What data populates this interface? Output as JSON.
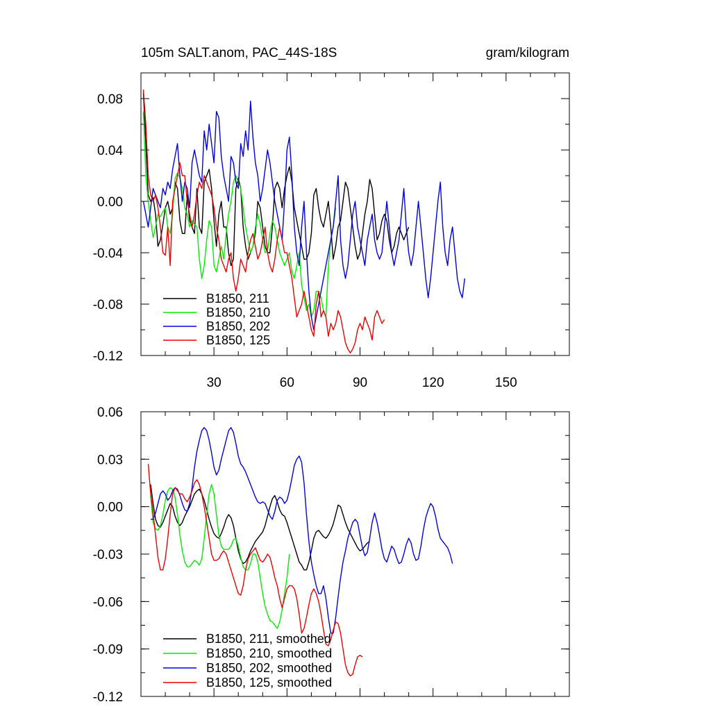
{
  "chart_data": [
    {
      "type": "line",
      "title_left": "105m SALT.anom, PAC_44S-18S",
      "title_right": "gram/kilogram",
      "xlim": [
        0,
        176
      ],
      "ylim": [
        -0.12,
        0.1
      ],
      "x_ticks": [
        30,
        60,
        90,
        120,
        150
      ],
      "x_tick_labels": [
        "30",
        "60",
        "90",
        "120",
        "150"
      ],
      "y_ticks": [
        0.08,
        0.04,
        0.0,
        -0.04,
        -0.08,
        -0.12
      ],
      "y_tick_labels": [
        "0.08",
        "0.04",
        "0.00",
        "-0.04",
        "-0.08",
        "-0.12"
      ],
      "legend_position": "bottom-left",
      "series": [
        {
          "name": "B1850, 211",
          "color": "#000000",
          "x_start": 1,
          "x_step": 1,
          "values": [
            0.085,
            0.045,
            0.005,
            0.0,
            0.003,
            -0.01,
            -0.035,
            -0.03,
            -0.018,
            -0.005,
            0.0,
            -0.01,
            -0.005,
            0.015,
            0.01,
            -0.015,
            -0.025,
            -0.025,
            0.005,
            -0.015,
            -0.02,
            -0.025,
            0.01,
            -0.02,
            -0.025,
            0.015,
            0.02,
            0.025,
            0.01,
            -0.015,
            -0.035,
            -0.01,
            0.0,
            -0.02,
            -0.02,
            -0.04,
            -0.05,
            -0.045,
            0.01,
            0.018,
            0.01,
            -0.02,
            -0.035,
            -0.045,
            -0.04,
            -0.035,
            -0.025,
            0.0,
            -0.005,
            -0.02,
            -0.035,
            -0.04,
            -0.04,
            -0.02,
            0.01,
            0.015,
            0.01,
            -0.005,
            0.01,
            0.02,
            0.027,
            0.015,
            -0.005,
            -0.015,
            -0.025,
            -0.035,
            -0.045,
            -0.045,
            -0.04,
            -0.025,
            0.005,
            0.01,
            -0.005,
            -0.015,
            -0.02,
            -0.01,
            0.0,
            -0.02,
            -0.045,
            -0.035,
            -0.02,
            -0.015,
            0.0,
            0.015,
            0.01,
            -0.005,
            -0.02,
            -0.035,
            -0.045,
            -0.04,
            -0.025,
            -0.01,
            0.0,
            0.017,
            0.01,
            -0.01,
            -0.03,
            -0.025,
            -0.015,
            -0.01,
            -0.015,
            -0.03,
            -0.04,
            -0.035,
            -0.025,
            -0.02,
            -0.025,
            -0.03,
            -0.025,
            -0.02
          ]
        },
        {
          "name": "B1850, 210",
          "color": "#00ee00",
          "x_start": 1,
          "x_step": 1,
          "values": [
            0.07,
            0.02,
            0.0,
            -0.015,
            -0.028,
            -0.02,
            -0.01,
            -0.012,
            -0.008,
            -0.005,
            -0.02,
            -0.025,
            -0.01,
            0.018,
            0.022,
            0.018,
            0.01,
            -0.005,
            -0.01,
            -0.02,
            -0.015,
            -0.018,
            -0.02,
            -0.045,
            -0.06,
            -0.05,
            -0.03,
            -0.015,
            -0.02,
            -0.05,
            -0.055,
            -0.045,
            -0.035,
            -0.045,
            -0.025,
            -0.01,
            0.0,
            0.015,
            0.02,
            0.015,
            0.01,
            -0.005,
            -0.02,
            -0.03,
            -0.04,
            -0.035,
            -0.02,
            -0.01,
            -0.018,
            -0.03,
            -0.04,
            -0.038,
            -0.025,
            -0.015,
            -0.02,
            -0.03,
            -0.04,
            -0.045,
            -0.05,
            -0.045,
            -0.04,
            -0.055,
            -0.06,
            -0.05,
            -0.04,
            -0.065,
            -0.075,
            -0.085,
            -0.08,
            -0.09,
            -0.085,
            -0.07,
            -0.07,
            -0.075,
            -0.085,
            -0.09,
            -0.05,
            -0.03,
            -0.02,
            -0.005
          ]
        },
        {
          "name": "B1850, 202",
          "color": "#0000dd",
          "x_start": 1,
          "x_step": 1,
          "values": [
            0.0,
            -0.01,
            -0.02,
            -0.005,
            0.01,
            0.005,
            0.0,
            -0.005,
            0.01,
            0.005,
            0.015,
            0.01,
            0.025,
            0.035,
            0.045,
            0.02,
            0.0,
            0.015,
            0.01,
            -0.005,
            0.03,
            0.04,
            0.03,
            0.02,
            0.015,
            0.055,
            0.04,
            0.06,
            0.045,
            0.03,
            0.07,
            0.065,
            0.035,
            0.02,
            0.01,
            0.0,
            0.035,
            0.03,
            0.015,
            0.01,
            0.045,
            0.035,
            0.055,
            0.04,
            0.078,
            0.05,
            0.03,
            0.02,
            0.0,
            0.01,
            0.025,
            0.04,
            0.03,
            0.015,
            0.0,
            -0.01,
            -0.02,
            -0.03,
            0.0,
            0.04,
            0.05,
            0.02,
            -0.02,
            -0.04,
            -0.05,
            -0.02,
            0.0,
            -0.04,
            -0.07,
            -0.09,
            -0.1,
            -0.09,
            -0.08,
            -0.07,
            -0.06,
            -0.05,
            -0.04,
            -0.03,
            -0.02,
            0.0,
            0.02,
            -0.03,
            -0.05,
            -0.06,
            -0.05,
            -0.03,
            -0.01,
            0.0,
            -0.02,
            -0.03,
            -0.04,
            -0.05,
            -0.03,
            -0.02,
            -0.01,
            -0.03,
            -0.04,
            -0.045,
            -0.04,
            -0.02,
            0.0,
            -0.02,
            -0.04,
            -0.05,
            -0.04,
            -0.03,
            -0.01,
            0.01,
            -0.02,
            -0.04,
            -0.05,
            -0.04,
            -0.02,
            0.0,
            -0.02,
            -0.04,
            -0.06,
            -0.075,
            -0.06,
            -0.04,
            -0.02,
            0.0,
            0.015,
            -0.02,
            -0.04,
            -0.05,
            -0.03,
            -0.02,
            -0.04,
            -0.06,
            -0.07,
            -0.075,
            -0.06
          ]
        },
        {
          "name": "B1850, 125",
          "color": "#ee0000",
          "x_start": 1,
          "x_step": 1,
          "values": [
            0.087,
            0.06,
            0.02,
            0.005,
            0.0,
            0.005,
            -0.005,
            -0.02,
            -0.04,
            -0.042,
            -0.02,
            -0.05,
            0.0,
            0.01,
            0.02,
            0.03,
            0.02,
            0.02,
            0.0,
            -0.01,
            -0.02,
            -0.01,
            0.005,
            0.015,
            0.01,
            0.02,
            0.015,
            0.01,
            0.005,
            -0.005,
            -0.02,
            -0.03,
            -0.045,
            -0.05,
            -0.055,
            -0.045,
            -0.04,
            -0.06,
            -0.07,
            -0.06,
            -0.045,
            -0.05,
            -0.055,
            -0.04,
            -0.03,
            -0.025,
            -0.035,
            -0.045,
            -0.04,
            -0.03,
            -0.02,
            -0.04,
            -0.05,
            -0.055,
            -0.045,
            -0.03,
            -0.02,
            -0.03,
            -0.04,
            -0.04,
            -0.05,
            -0.06,
            -0.075,
            -0.09,
            -0.085,
            -0.08,
            -0.07,
            -0.08,
            -0.09,
            -0.1,
            -0.105,
            -0.08,
            -0.07,
            -0.09,
            -0.085,
            -0.09,
            -0.105,
            -0.095,
            -0.1,
            -0.095,
            -0.085,
            -0.09,
            -0.1,
            -0.11,
            -0.115,
            -0.118,
            -0.115,
            -0.11,
            -0.1,
            -0.095,
            -0.1,
            -0.09,
            -0.095,
            -0.1,
            -0.108,
            -0.09,
            -0.085,
            -0.09,
            -0.095,
            -0.092
          ]
        }
      ]
    },
    {
      "type": "line",
      "xlim": [
        0,
        176
      ],
      "ylim": [
        -0.12,
        0.06
      ],
      "x_ticks": [
        30,
        60,
        90,
        120,
        150
      ],
      "y_ticks": [
        0.06,
        0.03,
        0.0,
        -0.03,
        -0.06,
        -0.09,
        -0.12
      ],
      "y_tick_labels": [
        "0.06",
        "0.03",
        "0.00",
        "-0.03",
        "-0.06",
        "-0.09",
        "-0.12"
      ],
      "legend_position": "bottom-left",
      "series": [
        {
          "name": "B1850, 211, smoothed",
          "color": "#000000",
          "x_start": 4,
          "x_step": 1,
          "values": [
            0.014,
            0.002,
            -0.008,
            -0.012,
            -0.013,
            -0.01,
            -0.006,
            -0.002,
            0.002,
            0.0,
            -0.006,
            -0.01,
            -0.012,
            -0.01,
            -0.006,
            -0.003,
            0.0,
            0.004,
            0.008,
            0.01,
            0.011,
            0.008,
            0.004,
            -0.002,
            -0.008,
            -0.013,
            -0.017,
            -0.019,
            -0.02,
            -0.017,
            -0.013,
            -0.008,
            -0.005,
            -0.007,
            -0.012,
            -0.02,
            -0.028,
            -0.033,
            -0.036,
            -0.035,
            -0.032,
            -0.028,
            -0.025,
            -0.022,
            -0.02,
            -0.018,
            -0.016,
            -0.012,
            -0.006,
            0.0,
            0.005,
            0.007,
            0.003,
            -0.002,
            -0.005,
            -0.006,
            -0.01,
            -0.015,
            -0.02,
            -0.025,
            -0.03,
            -0.035,
            -0.037,
            -0.04,
            -0.04,
            -0.035,
            -0.028,
            -0.02,
            -0.016,
            -0.015,
            -0.017,
            -0.019,
            -0.02,
            -0.018,
            -0.015,
            -0.011,
            -0.005,
            0.001,
            0.0,
            -0.005,
            -0.01,
            -0.014,
            -0.017,
            -0.02,
            -0.023,
            -0.026,
            -0.028,
            -0.027,
            -0.025,
            -0.023,
            -0.022
          ]
        },
        {
          "name": "B1850, 210, smoothed",
          "color": "#00ee00",
          "x_start": 4,
          "x_step": 1,
          "values": [
            0.007,
            -0.01,
            -0.014,
            -0.015,
            -0.012,
            -0.005,
            0.004,
            0.01,
            0.012,
            0.011,
            0.006,
            -0.005,
            -0.018,
            -0.028,
            -0.035,
            -0.038,
            -0.038,
            -0.036,
            -0.034,
            -0.035,
            -0.037,
            -0.033,
            -0.02,
            -0.005,
            0.008,
            0.014,
            0.008,
            -0.005,
            -0.018,
            -0.025,
            -0.027,
            -0.027,
            -0.027,
            -0.025,
            -0.021,
            -0.02,
            -0.025,
            -0.032,
            -0.038,
            -0.04,
            -0.04,
            -0.036,
            -0.03,
            -0.03,
            -0.035,
            -0.045,
            -0.055,
            -0.063,
            -0.068,
            -0.072,
            -0.073,
            -0.075,
            -0.077,
            -0.073,
            -0.065,
            -0.055,
            -0.045,
            -0.03
          ]
        },
        {
          "name": "B1850, 202, smoothed",
          "color": "#0000dd",
          "x_start": 4,
          "x_step": 1,
          "values": [
            -0.008,
            -0.008,
            -0.004,
            0.002,
            0.008,
            0.01,
            0.008,
            0.004,
            0.006,
            0.01,
            0.012,
            0.011,
            0.007,
            0.002,
            -0.002,
            -0.003,
            0.002,
            0.012,
            0.025,
            0.035,
            0.042,
            0.048,
            0.05,
            0.048,
            0.042,
            0.034,
            0.025,
            0.02,
            0.023,
            0.03,
            0.036,
            0.042,
            0.048,
            0.05,
            0.047,
            0.04,
            0.032,
            0.027,
            0.025,
            0.022,
            0.018,
            0.014,
            0.01,
            0.006,
            0.003,
            0.002,
            0.003,
            0.002,
            -0.002,
            -0.006,
            -0.008,
            -0.003,
            0.004,
            0.006,
            0.005,
            0.002,
            0.004,
            0.01,
            0.018,
            0.026,
            0.03,
            0.032,
            0.028,
            0.015,
            -0.005,
            -0.022,
            -0.035,
            -0.043,
            -0.05,
            -0.055,
            -0.055,
            -0.05,
            -0.058,
            -0.07,
            -0.08,
            -0.08,
            -0.07,
            -0.057,
            -0.045,
            -0.035,
            -0.028,
            -0.02,
            -0.015,
            -0.01,
            -0.008,
            -0.01,
            -0.018,
            -0.026,
            -0.031,
            -0.029,
            -0.02,
            -0.01,
            -0.004,
            -0.01,
            -0.018,
            -0.027,
            -0.033,
            -0.035,
            -0.03,
            -0.025,
            -0.027,
            -0.032,
            -0.036,
            -0.035,
            -0.03,
            -0.024,
            -0.02,
            -0.023,
            -0.03,
            -0.034,
            -0.033,
            -0.025,
            -0.015,
            -0.007,
            -0.002,
            0.002,
            0.0,
            -0.006,
            -0.014,
            -0.02,
            -0.022,
            -0.024,
            -0.026,
            -0.03,
            -0.036
          ]
        },
        {
          "name": "B1850, 125, smoothed",
          "color": "#ee0000",
          "x_start": 3,
          "x_step": 1,
          "values": [
            0.027,
            0.008,
            -0.004,
            -0.018,
            -0.032,
            -0.04,
            -0.04,
            -0.033,
            -0.02,
            -0.005,
            0.008,
            0.012,
            0.01,
            0.008,
            0.008,
            0.005,
            0.003,
            0.006,
            0.01,
            0.015,
            0.017,
            0.014,
            0.008,
            0.0,
            -0.01,
            -0.02,
            -0.03,
            -0.034,
            -0.034,
            -0.033,
            -0.03,
            -0.028,
            -0.03,
            -0.035,
            -0.04,
            -0.045,
            -0.05,
            -0.055,
            -0.056,
            -0.05,
            -0.04,
            -0.033,
            -0.03,
            -0.028,
            -0.026,
            -0.03,
            -0.034,
            -0.035,
            -0.033,
            -0.03,
            -0.032,
            -0.038,
            -0.045,
            -0.05,
            -0.058,
            -0.064,
            -0.058,
            -0.052,
            -0.05,
            -0.05,
            -0.052,
            -0.058,
            -0.068,
            -0.08,
            -0.077,
            -0.07,
            -0.062,
            -0.055,
            -0.052,
            -0.055,
            -0.06,
            -0.068,
            -0.078,
            -0.087,
            -0.088,
            -0.084,
            -0.078,
            -0.073,
            -0.074,
            -0.08,
            -0.09,
            -0.1,
            -0.105,
            -0.107,
            -0.106,
            -0.1,
            -0.095,
            -0.094,
            -0.095
          ]
        }
      ]
    }
  ]
}
